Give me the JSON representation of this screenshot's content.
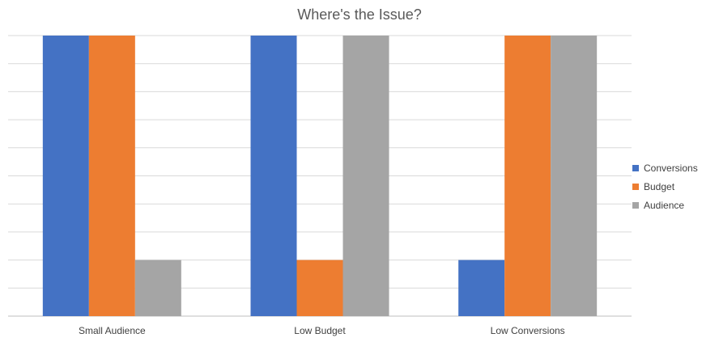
{
  "chart_data": {
    "type": "bar",
    "title": "Where's the Issue?",
    "categories": [
      "Small Audience",
      "Low Budget",
      "Low Conversions"
    ],
    "series": [
      {
        "name": "Conversions",
        "color": "#4472C4",
        "values": [
          10,
          10,
          2
        ]
      },
      {
        "name": "Budget",
        "color": "#ED7D31",
        "values": [
          10,
          2,
          10
        ]
      },
      {
        "name": "Audience",
        "color": "#A5A5A5",
        "values": [
          2,
          10,
          10
        ]
      }
    ],
    "ylim": [
      0,
      10
    ],
    "grid": true,
    "legend": "right"
  }
}
